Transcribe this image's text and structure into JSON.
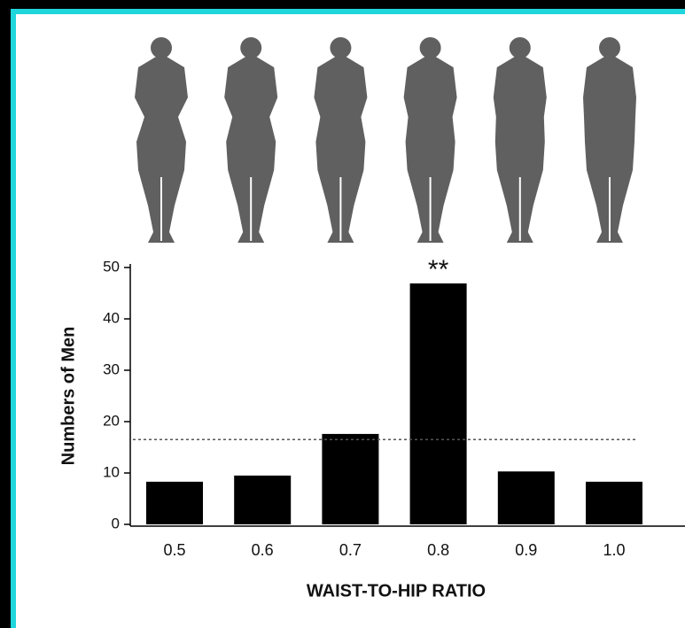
{
  "chart_data": {
    "type": "bar",
    "categories": [
      "0.5",
      "0.6",
      "0.7",
      "0.8",
      "0.9",
      "1.0"
    ],
    "values": [
      8.3,
      9.5,
      17.6,
      46.9,
      10.3,
      8.3
    ],
    "color": "#000000",
    "ylim": [
      0,
      50
    ],
    "yticks": [
      0,
      10,
      20,
      30,
      40,
      50
    ],
    "ylabel": "Numbers of Men",
    "xlabel": "WAIST-TO-HIP RATIO",
    "reference_line": 16.5,
    "annotations": [
      {
        "text": "**",
        "category": "0.8"
      }
    ]
  }
}
